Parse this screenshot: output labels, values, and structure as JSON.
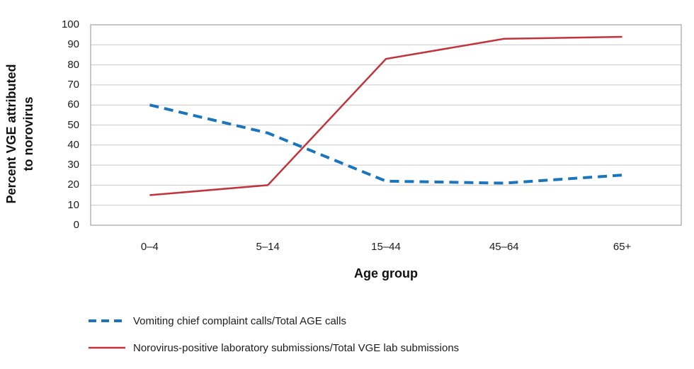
{
  "chart_data": {
    "type": "line",
    "categories": [
      "0–4",
      "5–14",
      "15–44",
      "45–64",
      "65+"
    ],
    "series": [
      {
        "name": "Vomiting chief complaint calls/Total AGE calls",
        "values": [
          60,
          46,
          22,
          21,
          25
        ],
        "color": "#1B75BC",
        "line_style": "dashed"
      },
      {
        "name": "Norovirus-positive laboratory submissions/Total VGE lab submissions",
        "values": [
          15,
          20,
          83,
          93,
          94
        ],
        "color": "#C1343C",
        "line_style": "solid"
      }
    ],
    "title": "",
    "xlabel": "Age group",
    "ylabel": "Percent VGE attributed to norovirus",
    "ylabel_line1": "Percent VGE attributed",
    "ylabel_line2": "to norovirus",
    "ylim": [
      0,
      100
    ],
    "ytick_step": 10,
    "grid": true,
    "legend_position": "bottom-left"
  },
  "colors": {
    "grid_line": "#C9C9C9",
    "plot_border": "#A9A9A9",
    "text": "#1c1c1c"
  }
}
